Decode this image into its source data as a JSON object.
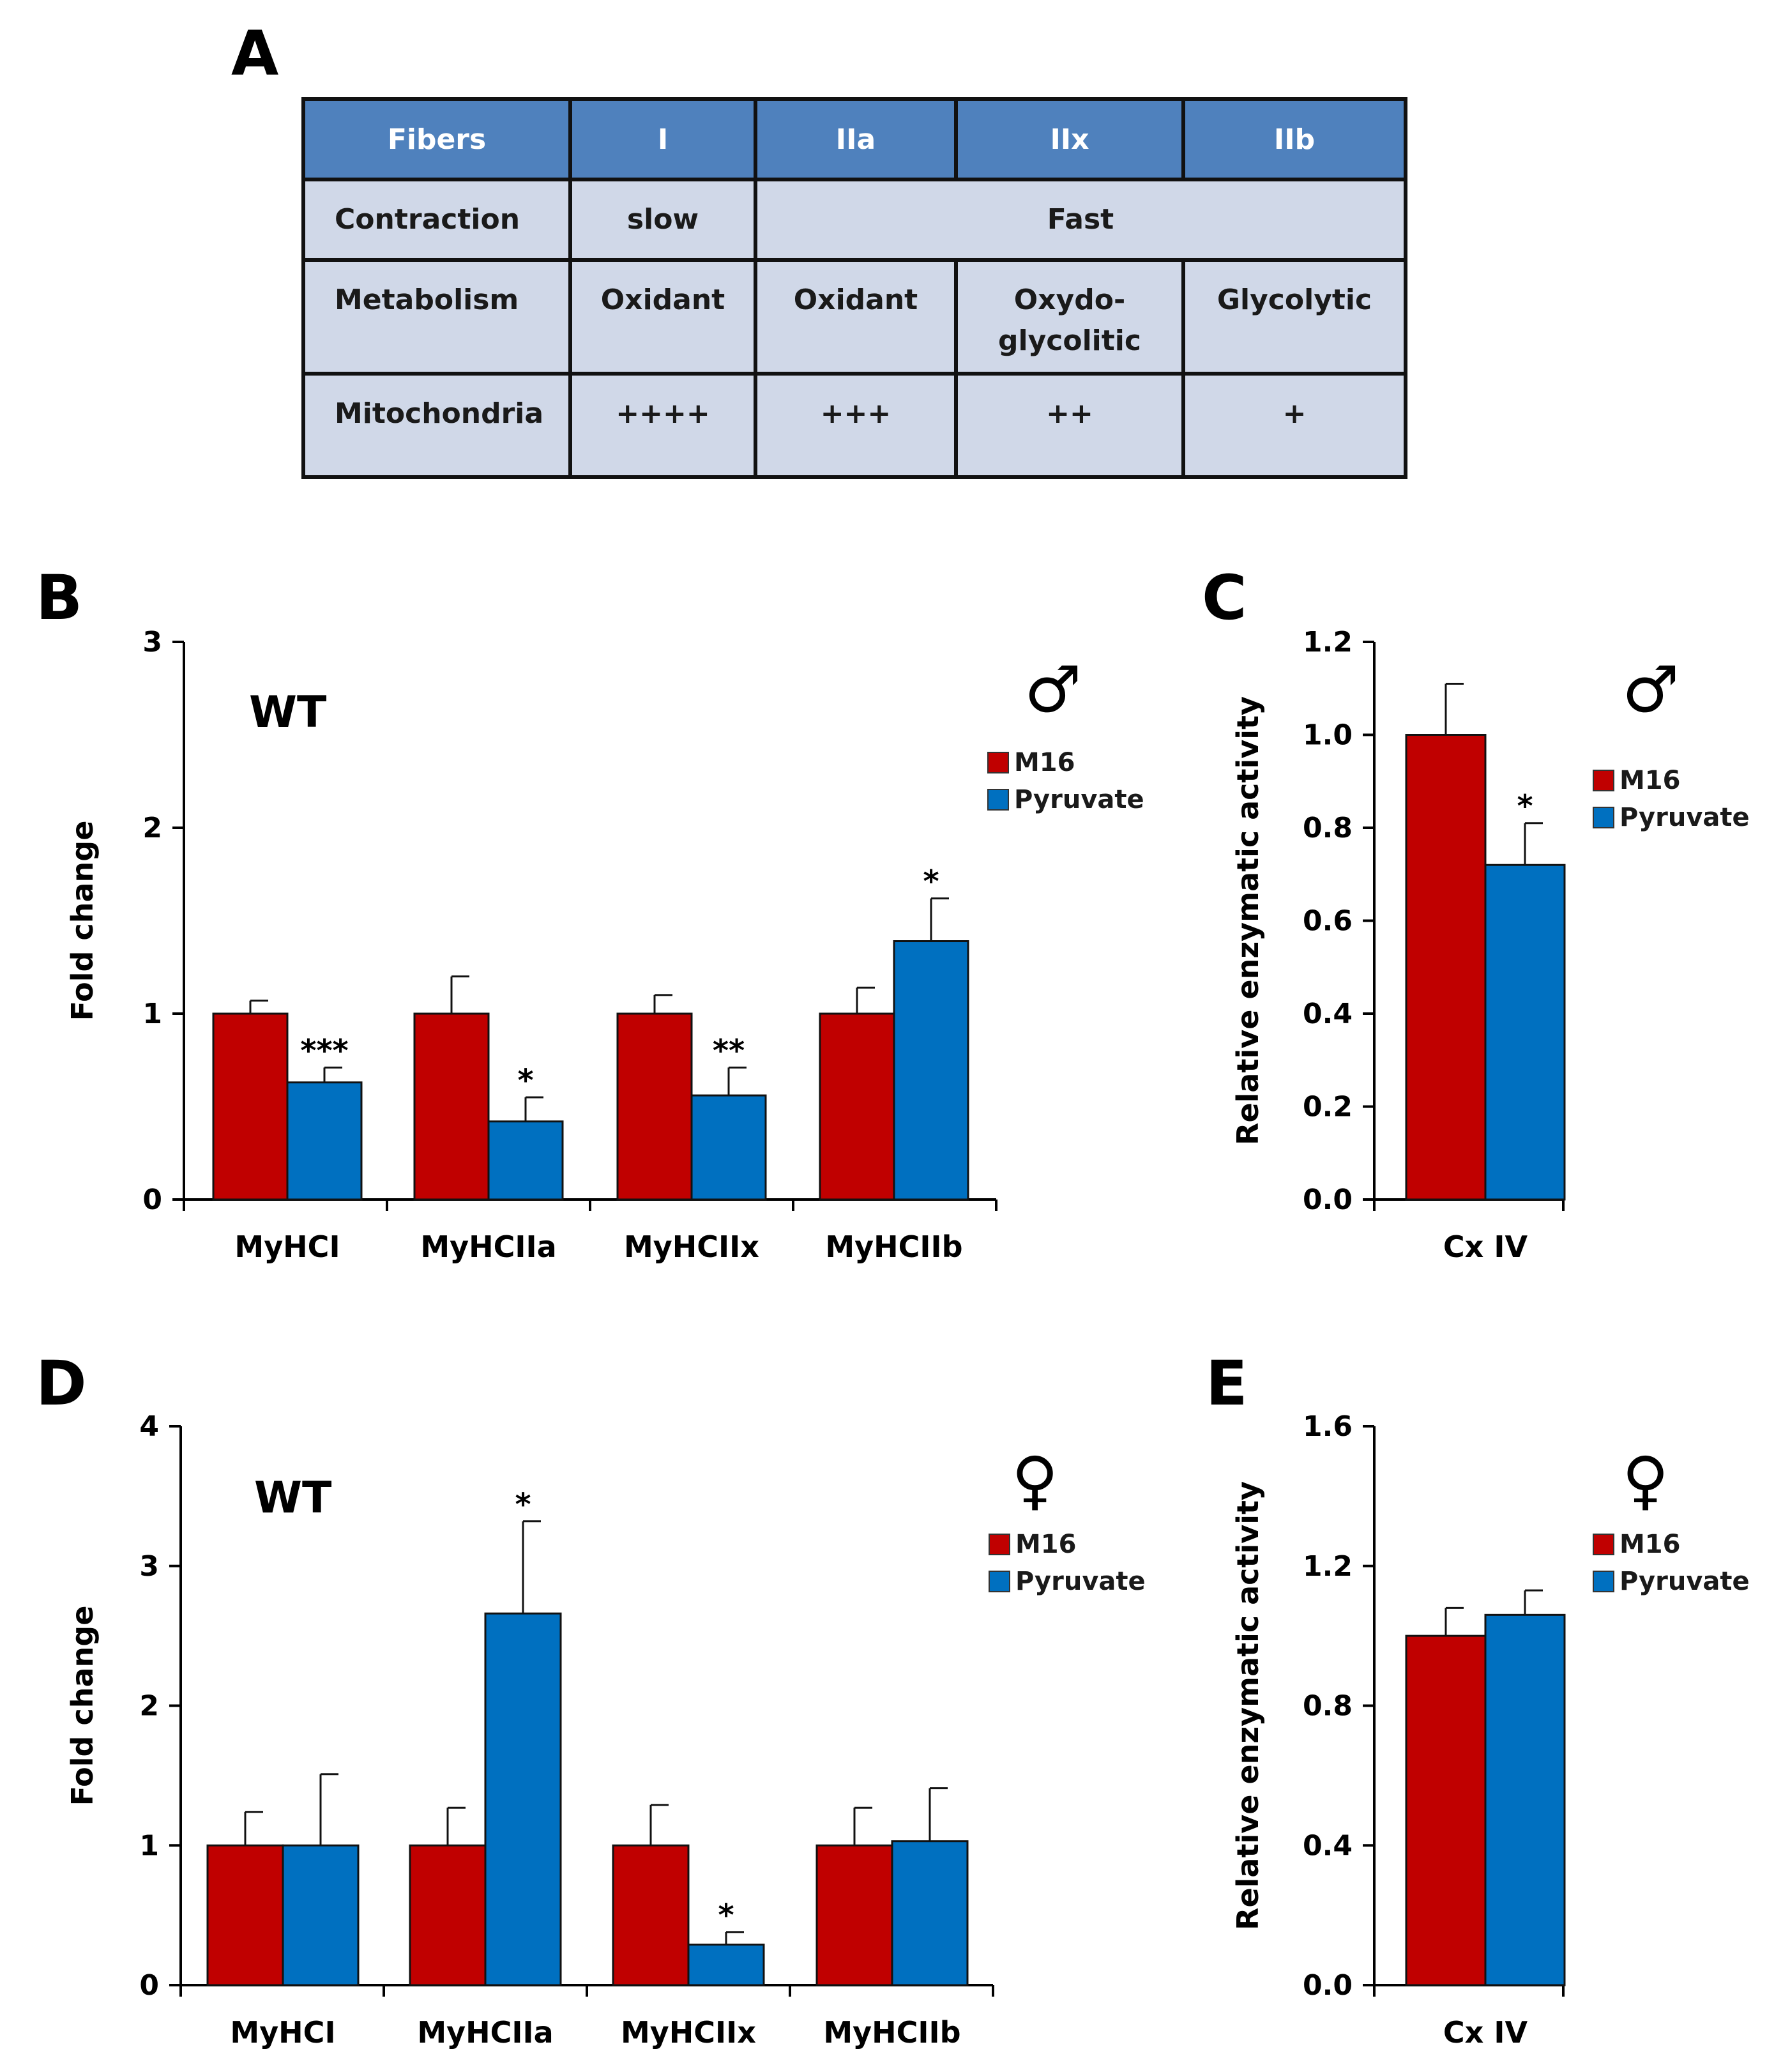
{
  "table": {
    "headers": [
      "Fibers",
      "I",
      "IIa",
      "IIx",
      "IIb"
    ],
    "rows": [
      {
        "label": "Contraction",
        "cells": [
          "slow",
          "Fast"
        ]
      },
      {
        "label": "Metabolism",
        "cells": [
          "Oxidant",
          "Oxidant",
          "Oxydo-\nglycolitic",
          "Glycolytic"
        ]
      },
      {
        "label": "Mitochondria",
        "cells": [
          "++++",
          "+++",
          "++",
          "+"
        ]
      }
    ]
  },
  "panels": {
    "A": "A",
    "B": "B",
    "C": "C",
    "D": "D",
    "E": "E"
  },
  "colors": {
    "M16": "#c00000",
    "Pyruvate": "#0070c0",
    "header": "#4f81bd",
    "cell": "#d0d8e8"
  },
  "chart_data": [
    {
      "id": "B",
      "type": "bar",
      "annotation": "WT",
      "sex_symbol": "♂",
      "categories": [
        "MyHCI",
        "MyHCIIa",
        "MyHCIIx",
        "MyHCIIb"
      ],
      "series": [
        {
          "name": "M16",
          "values": [
            1.0,
            1.0,
            1.0,
            1.0
          ],
          "errors": [
            0.07,
            0.2,
            0.1,
            0.14
          ],
          "sig": [
            "",
            "",
            "",
            ""
          ]
        },
        {
          "name": "Pyruvate",
          "values": [
            0.63,
            0.42,
            0.56,
            1.39
          ],
          "errors": [
            0.08,
            0.13,
            0.15,
            0.23
          ],
          "sig": [
            "***",
            "*",
            "**",
            "*"
          ]
        }
      ],
      "ylabel": "Fold change",
      "ylim": [
        0,
        3
      ],
      "yticks": [
        "0",
        "1",
        "2",
        "3"
      ]
    },
    {
      "id": "C",
      "type": "bar",
      "sex_symbol": "♂",
      "categories": [
        "Cx IV"
      ],
      "series": [
        {
          "name": "M16",
          "values": [
            1.0
          ],
          "errors": [
            0.11
          ],
          "sig": [
            ""
          ]
        },
        {
          "name": "Pyruvate",
          "values": [
            0.72
          ],
          "errors": [
            0.09
          ],
          "sig": [
            "*"
          ]
        }
      ],
      "ylabel": "Relative enzymatic activity",
      "ylim": [
        0,
        1.2
      ],
      "yticks": [
        "0.0",
        "0.2",
        "0.4",
        "0.6",
        "0.8",
        "1.0",
        "1.2"
      ]
    },
    {
      "id": "D",
      "type": "bar",
      "annotation": "WT",
      "sex_symbol": "♀",
      "categories": [
        "MyHCI",
        "MyHCIIa",
        "MyHCIIx",
        "MyHCIIb"
      ],
      "series": [
        {
          "name": "M16",
          "values": [
            1.0,
            1.0,
            1.0,
            1.0
          ],
          "errors": [
            0.24,
            0.27,
            0.29,
            0.27
          ],
          "sig": [
            "",
            "",
            "",
            ""
          ]
        },
        {
          "name": "Pyruvate",
          "values": [
            1.0,
            2.66,
            0.29,
            1.03
          ],
          "errors": [
            0.51,
            0.66,
            0.09,
            0.38
          ],
          "sig": [
            "",
            "*",
            "*",
            ""
          ]
        }
      ],
      "ylabel": "Fold change",
      "ylim": [
        0,
        4
      ],
      "yticks": [
        "0",
        "1",
        "2",
        "3",
        "4"
      ]
    },
    {
      "id": "E",
      "type": "bar",
      "sex_symbol": "♀",
      "categories": [
        "Cx IV"
      ],
      "series": [
        {
          "name": "M16",
          "values": [
            1.0
          ],
          "errors": [
            0.08
          ],
          "sig": [
            ""
          ]
        },
        {
          "name": "Pyruvate",
          "values": [
            1.06
          ],
          "errors": [
            0.07
          ],
          "sig": [
            ""
          ]
        }
      ],
      "ylabel": "Relative enzymatic activity",
      "ylim": [
        0,
        1.6
      ],
      "yticks": [
        "0.0",
        "0.4",
        "0.8",
        "1.2",
        "1.6"
      ]
    }
  ]
}
